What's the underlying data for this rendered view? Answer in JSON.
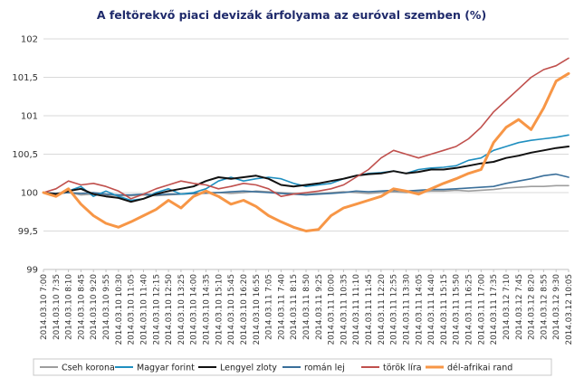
{
  "chart_data": {
    "type": "line",
    "title": "A feltörekvő piaci devizák árfolyama az euróval szemben (%)",
    "xlabel": "",
    "ylabel": "",
    "ylim": [
      99,
      102
    ],
    "yticks": [
      "99",
      "99,5",
      "100",
      "100,5",
      "101",
      "101,5",
      "102"
    ],
    "grid": true,
    "legend_position": "bottom",
    "x_labels": [
      "2014.03.10 7:00",
      "2014.03.10 7:35",
      "2014.03.10 8:10",
      "2014.03.10 8:45",
      "2014.03.10 9:20",
      "2014.03.10 9:55",
      "2014.03.10 10:30",
      "2014.03.10 11:05",
      "2014.03.10 11:40",
      "2014.03.10 12:15",
      "2014.03.10 12:50",
      "2014.03.10 13:25",
      "2014.03.10 14:00",
      "2014.03.10 14:35",
      "2014.03.10 15:10",
      "2014.03.10 15:45",
      "2014.03.10 16:20",
      "2014.03.10 16:55",
      "2014.03.11 7:05",
      "2014.03.11 7:40",
      "2014.03.11 8:15",
      "2014.03.11 8:50",
      "2014.03.11 9:25",
      "2014.03.11 10:00",
      "2014.03.11 10:35",
      "2014.03.11 11:10",
      "2014.03.11 11:45",
      "2014.03.11 12:20",
      "2014.03.11 12:55",
      "2014.03.11 13:30",
      "2014.03.11 14:05",
      "2014.03.11 14:40",
      "2014.03.11 15:15",
      "2014.03.11 15:50",
      "2014.03.11 16:25",
      "2014.03.11 17:00",
      "2014.03.11 17:35",
      "2014.03.12 7:10",
      "2014.03.12 7:45",
      "2014.03.12 8:20",
      "2014.03.12 8:55",
      "2014.03.12 9:30",
      "2014.03.12 10:05"
    ],
    "series": [
      {
        "name": "Cseh korona",
        "color": "#9e9e9e",
        "values": [
          100,
          99.98,
          100,
          99.97,
          99.98,
          99.97,
          99.96,
          99.96,
          99.97,
          99.96,
          99.97,
          99.98,
          99.99,
          99.99,
          100,
          99.99,
          100,
          100.02,
          100.01,
          100,
          99.99,
          99.98,
          99.99,
          100,
          100.01,
          100,
          99.99,
          100,
          100.01,
          100,
          100.01,
          100.02,
          100.02,
          100.03,
          100.02,
          100.03,
          100.04,
          100.06,
          100.07,
          100.08,
          100.08,
          100.09,
          100.09
        ]
      },
      {
        "name": "Magyar forint",
        "color": "#1f8fc0",
        "values": [
          100,
          99.97,
          100.02,
          100.08,
          99.95,
          100.02,
          99.95,
          99.9,
          99.92,
          100,
          100.05,
          99.98,
          100,
          100.05,
          100.15,
          100.2,
          100.15,
          100.18,
          100.2,
          100.18,
          100.12,
          100.08,
          100.1,
          100.12,
          100.18,
          100.22,
          100.25,
          100.26,
          100.28,
          100.25,
          100.3,
          100.32,
          100.33,
          100.35,
          100.42,
          100.45,
          100.55,
          100.6,
          100.65,
          100.68,
          100.7,
          100.72,
          100.75
        ]
      },
      {
        "name": "Lengyel zloty",
        "color": "#111111",
        "values": [
          100,
          99.98,
          100.02,
          100.05,
          99.98,
          99.95,
          99.93,
          99.88,
          99.92,
          99.98,
          100.02,
          100.05,
          100.08,
          100.15,
          100.2,
          100.18,
          100.2,
          100.22,
          100.18,
          100.1,
          100.08,
          100.1,
          100.12,
          100.15,
          100.18,
          100.22,
          100.24,
          100.25,
          100.28,
          100.25,
          100.27,
          100.3,
          100.3,
          100.32,
          100.35,
          100.38,
          100.4,
          100.45,
          100.48,
          100.52,
          100.55,
          100.58,
          100.6
        ]
      },
      {
        "name": "román lej",
        "color": "#3a6f9a",
        "values": [
          100,
          99.99,
          100,
          99.99,
          100,
          99.98,
          99.97,
          99.97,
          99.98,
          99.97,
          99.98,
          99.98,
          99.99,
          100,
          100,
          100.01,
          100.02,
          100.01,
          100,
          99.99,
          99.98,
          99.97,
          99.98,
          99.99,
          100,
          100.02,
          100.01,
          100.02,
          100.03,
          100.02,
          100.03,
          100.04,
          100.04,
          100.05,
          100.06,
          100.07,
          100.08,
          100.12,
          100.15,
          100.18,
          100.22,
          100.24,
          100.2
        ]
      },
      {
        "name": "török líra",
        "color": "#c0504d",
        "values": [
          100,
          100.05,
          100.15,
          100.1,
          100.12,
          100.08,
          100.02,
          99.92,
          99.98,
          100.05,
          100.1,
          100.15,
          100.12,
          100.1,
          100.05,
          100.08,
          100.12,
          100.1,
          100.05,
          99.95,
          99.98,
          100,
          100.02,
          100.05,
          100.1,
          100.2,
          100.3,
          100.45,
          100.55,
          100.5,
          100.45,
          100.5,
          100.55,
          100.6,
          100.7,
          100.85,
          101.05,
          101.2,
          101.35,
          101.5,
          101.6,
          101.65,
          101.75
        ]
      },
      {
        "name": "dél-afrikai rand",
        "color": "#f79646",
        "values": [
          100,
          99.95,
          100.05,
          99.85,
          99.7,
          99.6,
          99.55,
          99.62,
          99.7,
          99.78,
          99.9,
          99.8,
          99.95,
          100.02,
          99.95,
          99.85,
          99.9,
          99.82,
          99.7,
          99.62,
          99.55,
          99.5,
          99.52,
          99.7,
          99.8,
          99.85,
          99.9,
          99.95,
          100.05,
          100.02,
          99.98,
          100.05,
          100.12,
          100.18,
          100.25,
          100.3,
          100.65,
          100.85,
          100.95,
          100.82,
          101.1,
          101.45,
          101.55
        ]
      }
    ]
  }
}
